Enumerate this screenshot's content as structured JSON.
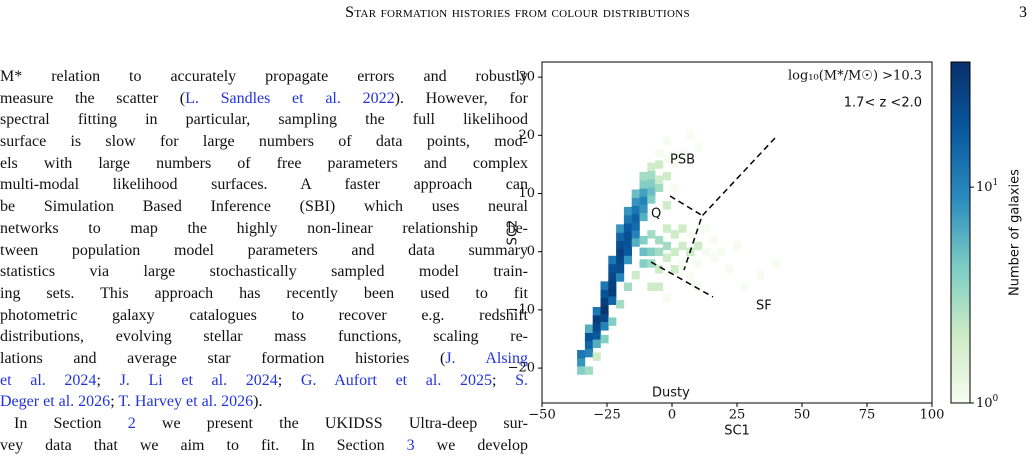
{
  "header": {
    "title": "Star formation histories from colour distributions",
    "page": "3"
  },
  "text": {
    "paragraphs": [
      [
        [
          "M* relation to accurately propagate errors and robustly"
        ],
        [
          "measure the scatter (",
          {
            "link": "L. Sandles et al. 2022"
          },
          "). However, for"
        ],
        [
          "spectral fitting in particular, sampling the full likelihood"
        ],
        [
          "surface is slow for large numbers of data points, mod-"
        ],
        [
          "els with large numbers of free parameters and complex"
        ],
        [
          "multi-modal likelihood surfaces. A faster approach can"
        ],
        [
          "be Simulation Based Inference (SBI) which uses neural"
        ],
        [
          "networks to map the highly non-linear relationship be-"
        ],
        [
          "tween population model parameters and data summary"
        ],
        [
          "statistics via large stochastically sampled model train-"
        ],
        [
          "ing sets. This approach has recently been used to fit"
        ],
        [
          "photometric galaxy catalogues to recover e.g. redshift"
        ],
        [
          "distributions, evolving stellar mass functions, scaling re-"
        ],
        [
          "lations and average star formation histories (",
          {
            "link": "J. Alsing"
          }
        ],
        [
          {
            "link": "et al. 2024"
          },
          "; ",
          {
            "link": "J. Li et al. 2024"
          },
          "; ",
          {
            "link": "G. Aufort et al. 2025"
          },
          "; ",
          {
            "link": "S."
          }
        ],
        [
          {
            "link": "Deger et al. 2026"
          },
          "; ",
          {
            "link": "T. Harvey et al. 2026"
          },
          ")."
        ]
      ],
      [
        [
          "In Section ",
          {
            "link": "2"
          },
          " we present the UKIDSS Ultra-deep sur-"
        ],
        [
          "vey data that we aim to fit. In Section ",
          {
            "link": "3"
          },
          " we develop"
        ]
      ]
    ]
  },
  "chart_data": {
    "type": "heatmap",
    "xlabel": "SC1",
    "ylabel": "SC2",
    "colorbar_label": "Number of galaxies",
    "annotations": [
      "log₁₀(M*/M☉) >10.3",
      "1.7< z <2.0"
    ],
    "regions": [
      "PSB",
      "Q",
      "SF",
      "Dusty"
    ],
    "xlim": [
      -50,
      100
    ],
    "ylim": [
      -26,
      32.6
    ],
    "xticks": [
      {
        "value": -50,
        "label": "−50"
      },
      {
        "value": -25,
        "label": "−25"
      },
      0,
      25,
      50,
      75,
      100
    ],
    "yticks": [
      {
        "value": -20,
        "label": "−20"
      },
      {
        "value": -10,
        "label": "−10"
      },
      0,
      10,
      20,
      30
    ],
    "clim": [
      1,
      38
    ],
    "color_scale": "log",
    "cticks": [
      {
        "value": 1,
        "label": "10",
        "exponent": "0"
      },
      {
        "value": 10,
        "label": "10",
        "exponent": "1"
      }
    ],
    "colormap": [
      "#f7fcf0",
      "#ccebc5",
      "#7bccc4",
      "#2b8cbe",
      "#08589e",
      "#08306b"
    ],
    "bin_size": [
      3,
      1.4
    ],
    "cells": [
      [
        -35,
        -19,
        8
      ],
      [
        -35,
        -17.6,
        12
      ],
      [
        -35,
        -20.4,
        4
      ],
      [
        -32,
        -16,
        15
      ],
      [
        -32,
        -14.6,
        20
      ],
      [
        -32,
        -17.4,
        10
      ],
      [
        -32,
        -13.2,
        6
      ],
      [
        -32,
        -20.4,
        3
      ],
      [
        -29,
        -13,
        25
      ],
      [
        -29,
        -11.6,
        30
      ],
      [
        -29,
        -14.4,
        18
      ],
      [
        -29,
        -10.2,
        12
      ],
      [
        -29,
        -15.8,
        6
      ],
      [
        -29,
        -18,
        2
      ],
      [
        -26,
        -10,
        35
      ],
      [
        -26,
        -8.6,
        30
      ],
      [
        -26,
        -11.4,
        25
      ],
      [
        -26,
        -7.2,
        20
      ],
      [
        -26,
        -5.8,
        12
      ],
      [
        -26,
        -12.8,
        10
      ],
      [
        -26,
        -15,
        4
      ],
      [
        -23,
        -7,
        30
      ],
      [
        -23,
        -5.6,
        28
      ],
      [
        -23,
        -4.2,
        25
      ],
      [
        -23,
        -2.8,
        20
      ],
      [
        -23,
        -8.4,
        15
      ],
      [
        -23,
        -1.4,
        12
      ],
      [
        -23,
        -12,
        4
      ],
      [
        -20,
        -3,
        22
      ],
      [
        -20,
        -1.6,
        25
      ],
      [
        -20,
        -0.2,
        28
      ],
      [
        -20,
        1.2,
        22
      ],
      [
        -20,
        2.6,
        15
      ],
      [
        -20,
        -4.4,
        10
      ],
      [
        -20,
        4,
        8
      ],
      [
        -20,
        -9,
        3
      ],
      [
        -17,
        0,
        18
      ],
      [
        -17,
        1.4,
        20
      ],
      [
        -17,
        2.8,
        22
      ],
      [
        -17,
        4.2,
        18
      ],
      [
        -17,
        5.6,
        12
      ],
      [
        -17,
        7,
        8
      ],
      [
        -17,
        -1.4,
        8
      ],
      [
        -17,
        -6,
        3
      ],
      [
        -14,
        3,
        10
      ],
      [
        -14,
        4.4,
        14
      ],
      [
        -14,
        5.8,
        16
      ],
      [
        -14,
        7.2,
        12
      ],
      [
        -14,
        8.6,
        8
      ],
      [
        -14,
        10,
        5
      ],
      [
        -14,
        1.6,
        6
      ],
      [
        -14,
        -4,
        2
      ],
      [
        -11,
        6,
        6
      ],
      [
        -11,
        7.4,
        8
      ],
      [
        -11,
        8.8,
        10
      ],
      [
        -11,
        10.2,
        7
      ],
      [
        -11,
        11.6,
        4
      ],
      [
        -11,
        13,
        3
      ],
      [
        -8,
        9,
        4
      ],
      [
        -8,
        10.4,
        5
      ],
      [
        -8,
        11.8,
        4
      ],
      [
        -8,
        13.2,
        3
      ],
      [
        -8,
        14.6,
        2
      ],
      [
        -5,
        11,
        3
      ],
      [
        -5,
        12.4,
        2
      ],
      [
        -5,
        15,
        2
      ],
      [
        -5,
        17,
        1
      ],
      [
        -2,
        13,
        2
      ],
      [
        -2,
        16,
        1
      ],
      [
        -2,
        19,
        1
      ],
      [
        1,
        15,
        1
      ],
      [
        4,
        17,
        1
      ],
      [
        7,
        20,
        1
      ],
      [
        10,
        18,
        1
      ],
      [
        1,
        11,
        1
      ],
      [
        -2,
        8,
        2
      ],
      [
        -11,
        0,
        5
      ],
      [
        -11,
        -2,
        4
      ],
      [
        -11,
        2,
        4
      ],
      [
        -8,
        0,
        4
      ],
      [
        -8,
        -2,
        3
      ],
      [
        -8,
        3,
        3
      ],
      [
        -5,
        0,
        3
      ],
      [
        -5,
        2,
        3
      ],
      [
        -5,
        -3,
        2
      ],
      [
        -2,
        1,
        3
      ],
      [
        -2,
        -1,
        2
      ],
      [
        -2,
        4,
        2
      ],
      [
        1,
        0,
        2
      ],
      [
        1,
        3,
        2
      ],
      [
        1,
        -3,
        2
      ],
      [
        4,
        1,
        2
      ],
      [
        4,
        -2,
        1
      ],
      [
        4,
        4,
        2
      ],
      [
        7,
        0,
        2
      ],
      [
        7,
        3,
        1
      ],
      [
        7,
        -4,
        1
      ],
      [
        10,
        1,
        2
      ],
      [
        10,
        -2,
        1
      ],
      [
        13,
        0,
        1
      ],
      [
        13,
        4,
        1
      ],
      [
        16,
        -1,
        1
      ],
      [
        16,
        2,
        1
      ],
      [
        19,
        0,
        1
      ],
      [
        22,
        -3,
        1
      ],
      [
        25,
        1,
        1
      ],
      [
        28,
        -6,
        1
      ],
      [
        34,
        -4,
        1
      ],
      [
        40,
        -2,
        1
      ],
      [
        10,
        -6,
        1
      ],
      [
        -5,
        -6,
        2
      ],
      [
        -8,
        -6,
        2
      ],
      [
        -2,
        -8,
        1
      ]
    ]
  }
}
